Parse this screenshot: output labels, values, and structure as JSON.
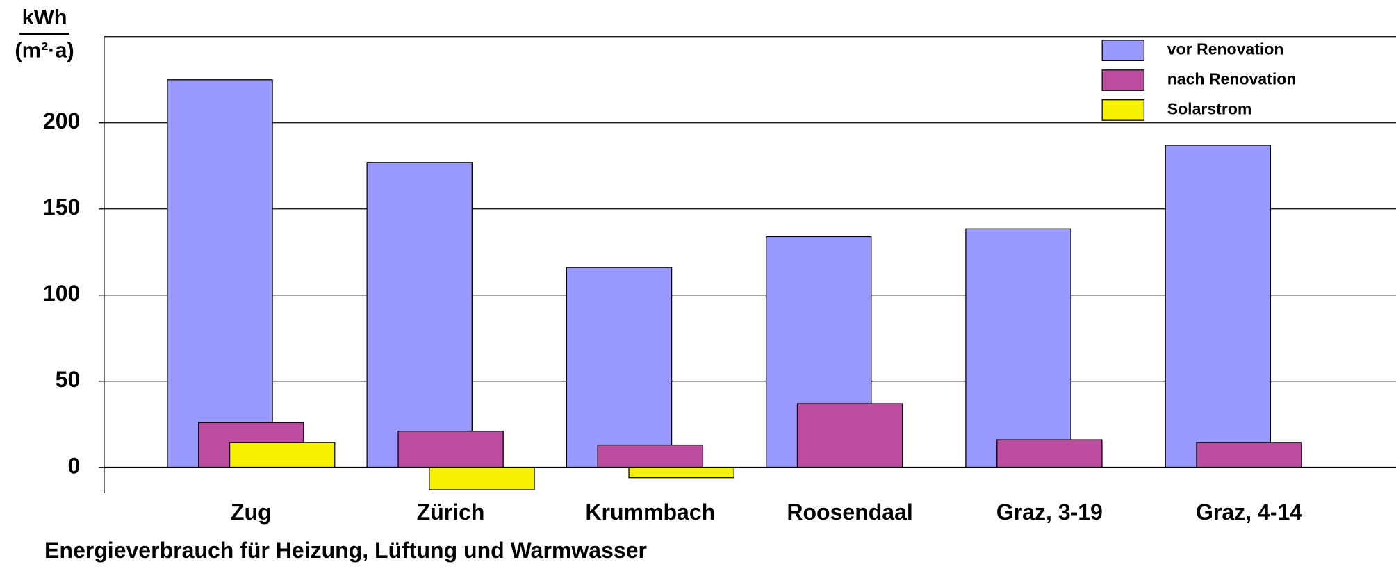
{
  "chart_data": {
    "type": "bar",
    "title": "Energieverbrauch für Heizung, Lüftung und Warmwasser",
    "y_unit": [
      "kWh",
      "(m²·a)"
    ],
    "categories": [
      "Zug",
      "Zürich",
      "Krummbach",
      "Roosendaal",
      "Graz, 3-19",
      "Graz, 4-14"
    ],
    "series": [
      {
        "name": "vor Renovation",
        "color": "#9999ff",
        "values": [
          225,
          177,
          116,
          134,
          138.5,
          187
        ]
      },
      {
        "name": "nach Renovation",
        "color": "#bb4ca0",
        "values": [
          26,
          21,
          13,
          37,
          16,
          14.5
        ]
      },
      {
        "name": "Solarstrom",
        "color": "#f7f200",
        "values": [
          14.5,
          -13,
          -6,
          null,
          null,
          null
        ]
      }
    ],
    "ylim": [
      -15,
      250
    ],
    "yticks": [
      0,
      50,
      100,
      150,
      200
    ],
    "grid": true,
    "legend": "upper right"
  }
}
